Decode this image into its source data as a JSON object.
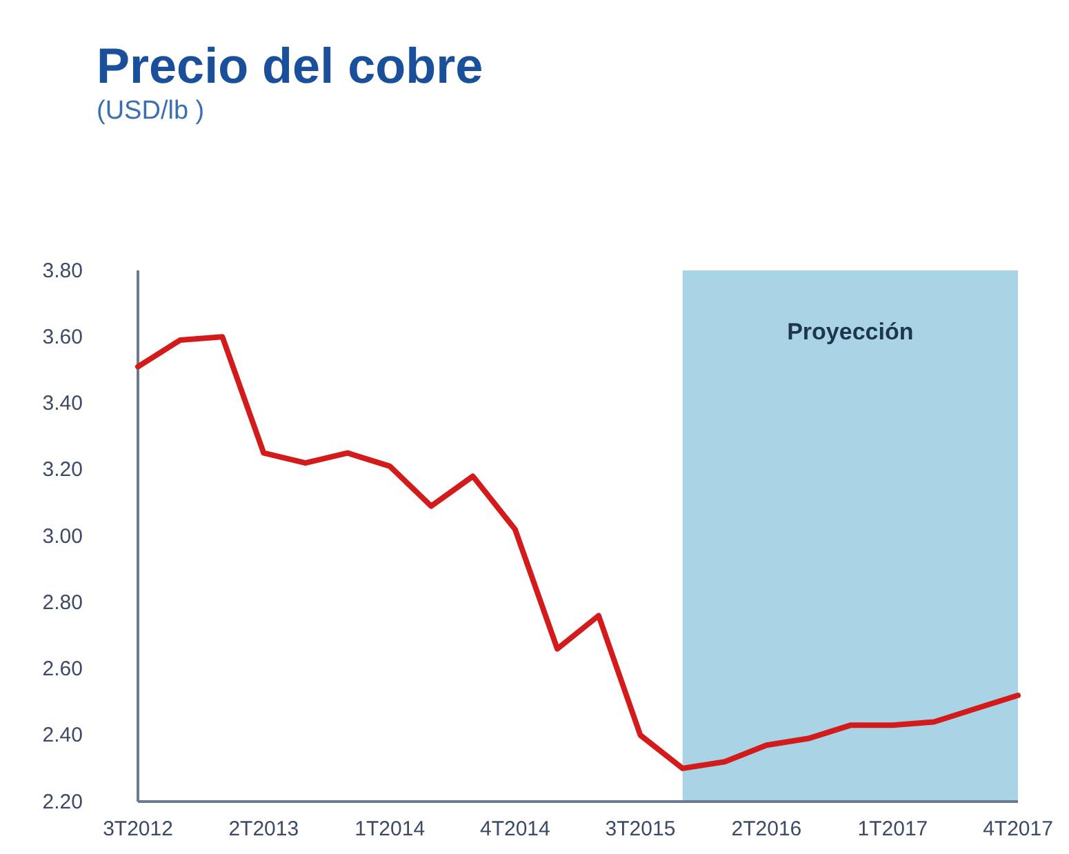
{
  "chart_data": {
    "type": "line",
    "title": "Precio del cobre",
    "subtitle": "(USD/lb )",
    "x": [
      "2012-07",
      "2012-10",
      "2013-01",
      "2013-04",
      "2013-07",
      "2013-10",
      "2014-01",
      "2014-04",
      "2014-07",
      "2014-10",
      "2015-01",
      "2015-04",
      "2015-07",
      "2015-10",
      "2016-01",
      "2016-04",
      "2016-07",
      "2016-10",
      "2017-01",
      "2017-04",
      "2017-07",
      "2017-10"
    ],
    "series": [
      {
        "color": "#d41b1b",
        "values": [
          3.51,
          3.59,
          3.6,
          3.25,
          3.22,
          3.25,
          3.21,
          3.09,
          3.18,
          3.02,
          2.66,
          2.76,
          2.4,
          2.3,
          2.32,
          2.37,
          2.39,
          2.43,
          2.43,
          2.44,
          2.48,
          2.52
        ]
      }
    ],
    "xlim": [
      "2012-07",
      "2017-10"
    ],
    "xticks": [
      {
        "value": "2012-07",
        "label": "3T2012"
      },
      {
        "value": "2013-04",
        "label": "2T2013"
      },
      {
        "value": "2014-01",
        "label": "1T2014"
      },
      {
        "value": "2014-10",
        "label": "4T2014"
      },
      {
        "value": "2015-07",
        "label": "3T2015"
      },
      {
        "value": "2016-04",
        "label": "2T2016"
      },
      {
        "value": "2017-01",
        "label": "1T2017"
      },
      {
        "value": "2017-10",
        "label": "4T2017"
      }
    ],
    "ylim": [
      2.2,
      3.8
    ],
    "yticks": [
      {
        "value": 2.2,
        "label": "2.20"
      },
      {
        "value": 2.4,
        "label": "2.40"
      },
      {
        "value": 2.6,
        "label": "2.60"
      },
      {
        "value": 2.8,
        "label": "2.80"
      },
      {
        "value": 3.0,
        "label": "3.00"
      },
      {
        "value": 3.2,
        "label": "3.20"
      },
      {
        "value": 3.4,
        "label": "3.40"
      },
      {
        "value": 3.6,
        "label": "3.60"
      },
      {
        "value": 3.8,
        "label": "3.80"
      }
    ],
    "bands": [
      {
        "axis": "x",
        "from": "2015-10",
        "to": "2017-10",
        "label": "Proyección",
        "color": "#a9d4e6"
      }
    ],
    "grid": false,
    "marker": "none",
    "line_style": "solid"
  }
}
